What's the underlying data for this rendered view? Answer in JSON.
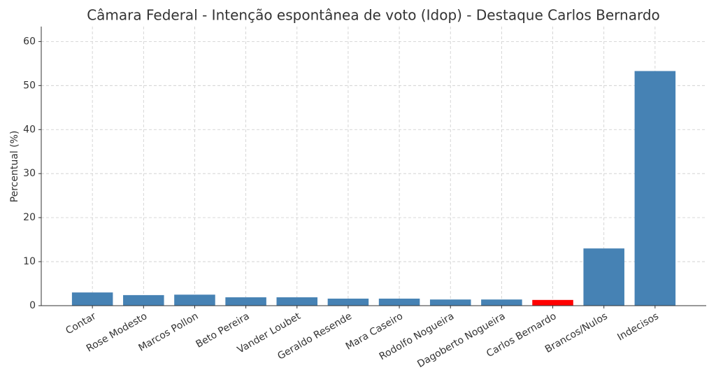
{
  "chart_data": {
    "type": "bar",
    "title": "Câmara Federal - Intenção espontânea de voto (Idop) - Destaque Carlos Bernardo",
    "y_label": "Percentual (%)",
    "categories": [
      "Contar",
      "Rose Modesto",
      "Marcos Pollon",
      "Beto Pereira",
      "Vander Loubet",
      "Geraldo Resende",
      "Mara Caseiro",
      "Rodolfo Nogueira",
      "Dagoberto Nogueira",
      "Carlos Bernardo",
      "Brancos/Nulos",
      "Indecisos"
    ],
    "values": [
      3.0,
      2.4,
      2.5,
      1.9,
      1.9,
      1.6,
      1.6,
      1.4,
      1.4,
      1.3,
      13.0,
      53.3
    ],
    "colors": [
      "#4682b4",
      "#4682b4",
      "#4682b4",
      "#4682b4",
      "#4682b4",
      "#4682b4",
      "#4682b4",
      "#4682b4",
      "#4682b4",
      "#ff0000",
      "#4682b4",
      "#4682b4"
    ],
    "ylim": [
      0,
      63.4
    ],
    "yticks": [
      0,
      10,
      20,
      30,
      40,
      50,
      60
    ],
    "grid": true
  }
}
